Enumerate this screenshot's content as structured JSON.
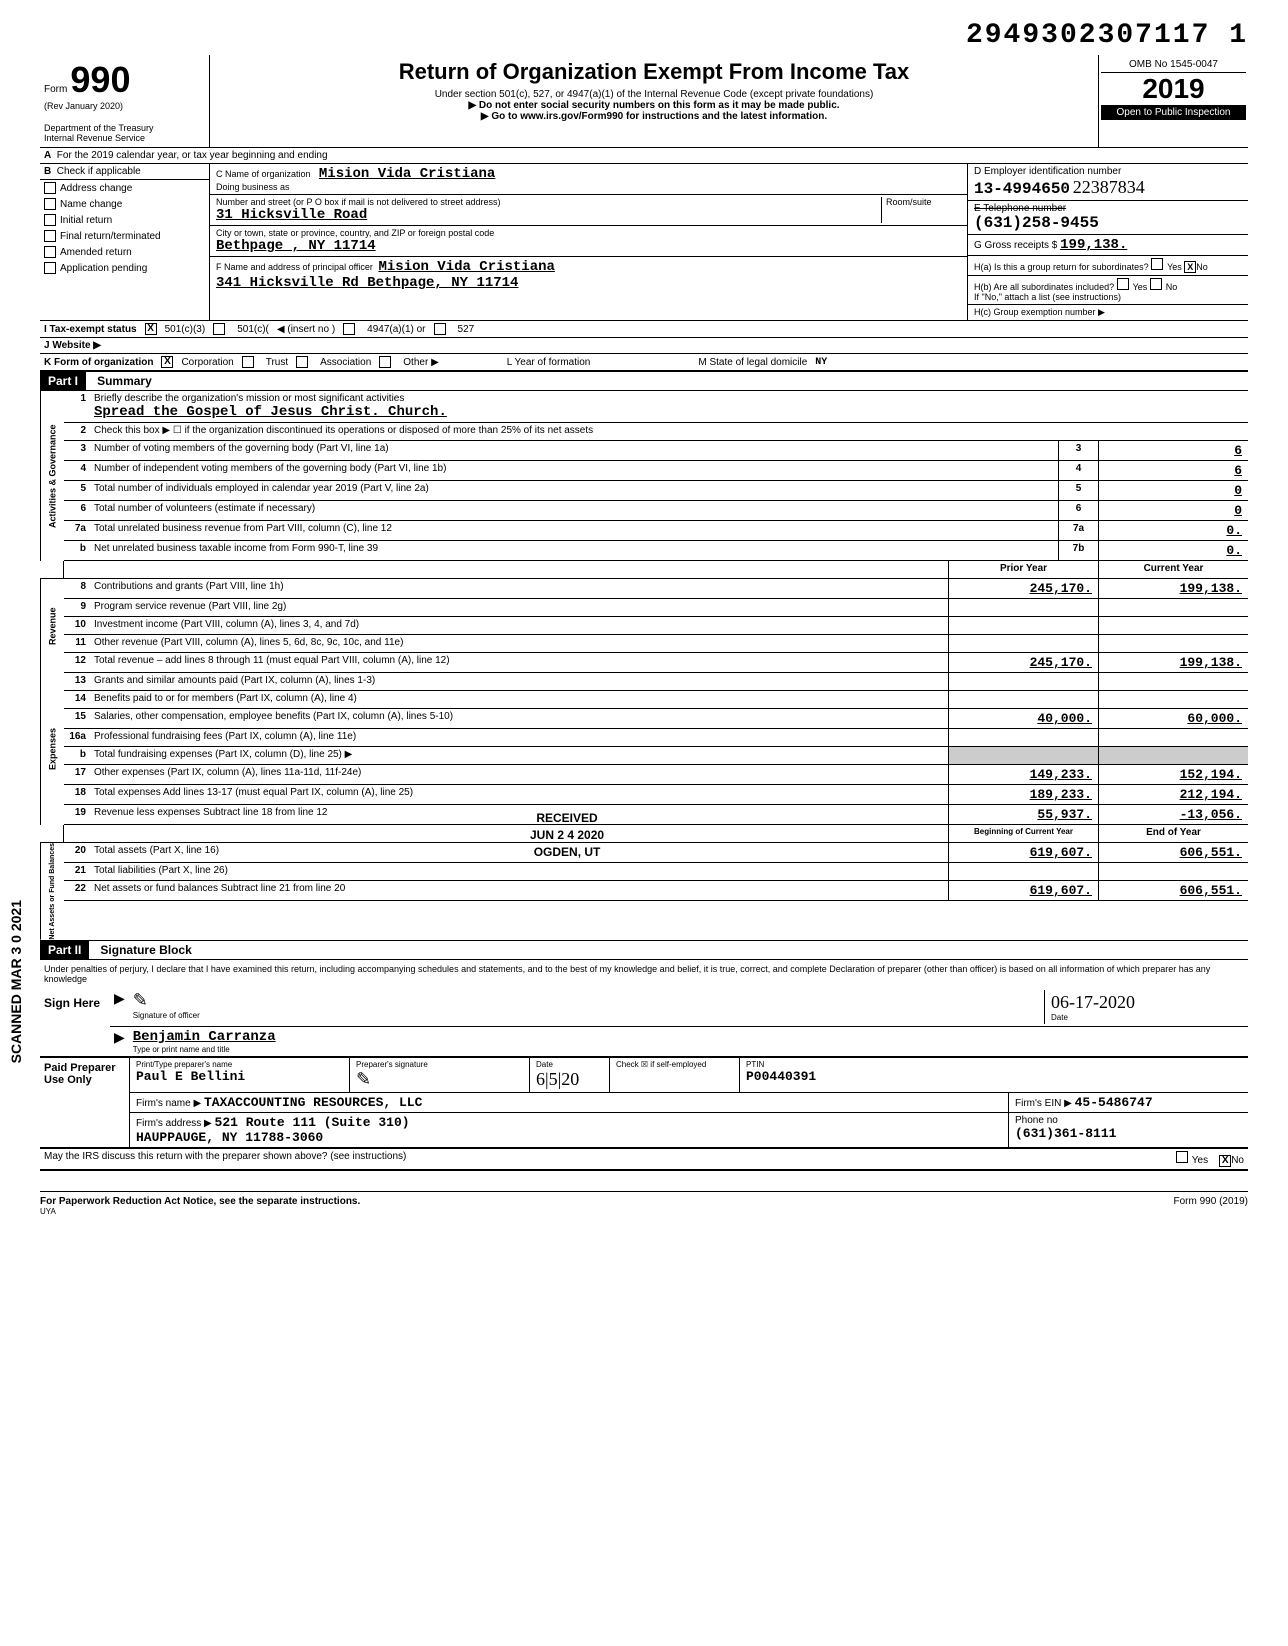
{
  "scan_number": "2949302307117 1",
  "form": {
    "prefix": "Form",
    "number": "990",
    "rev": "(Rev  January 2020)",
    "dept": "Department of the Treasury",
    "irs": "Internal Revenue Service"
  },
  "header": {
    "title": "Return of Organization Exempt From Income Tax",
    "sub1": "Under section 501(c), 527, or 4947(a)(1) of the Internal Revenue Code (except private foundations)",
    "sub2": "▶ Do not enter social security numbers on this form as it may be made public.",
    "sub3": "▶ Go to www.irs.gov/Form990 for instructions and the latest information.",
    "omb": "OMB No  1545-0047",
    "year": "2019",
    "open": "Open to Public Inspection"
  },
  "line_a": "For the 2019 calendar year, or tax year beginning                              and ending",
  "b_label": "Check if applicable",
  "b_checks": [
    "Address change",
    "Name change",
    "Initial return",
    "Final return/terminated",
    "Amended return",
    "Application pending"
  ],
  "c": {
    "name_label": "C  Name of organization",
    "name": "Mision Vida Cristiana",
    "dba_label": "Doing business as",
    "addr_label": "Number and street (or P O  box if mail is not delivered to street address)",
    "room_label": "Room/suite",
    "addr": "31 Hicksville Road",
    "city_label": "City or town, state or province, country, and ZIP or foreign postal code",
    "city": "Bethpage , NY 11714",
    "f_label": "F  Name and address of principal officer",
    "f_name": "Mision Vida Cristiana",
    "f_addr": "341 Hicksville Rd Bethpage, NY 11714"
  },
  "d": {
    "label": "D  Employer identification number",
    "ein": "13-4994650",
    "handwritten": "22387834"
  },
  "e": {
    "label": "E  Telephone number",
    "phone": "(631)258-9455"
  },
  "g": {
    "label": "G  Gross receipts $",
    "amount": "199,138."
  },
  "h": {
    "a_label": "H(a) Is this a group return for subordinates?",
    "a_no": "No",
    "b_label": "H(b) Are all subordinates included?",
    "b_note": "If \"No,\" attach a list  (see instructions)",
    "c_label": "H(c) Group exemption number ▶"
  },
  "i": {
    "label": "I    Tax-exempt status",
    "opt1": "501(c)(3)",
    "opt2": "501(c)(",
    "opt3": "◀ (insert no )",
    "opt4": "4947(a)(1) or",
    "opt5": "527"
  },
  "j": {
    "label": "J   Website  ▶"
  },
  "k": {
    "label": "K  Form of organization",
    "opts": [
      "Corporation",
      "Trust",
      "Association",
      "Other ▶"
    ],
    "l_label": "L   Year of formation",
    "m_label": "M  State of legal domicile",
    "m_val": "NY"
  },
  "part1": {
    "label": "Part I",
    "title": "Summary"
  },
  "summary": {
    "line1_label": "Briefly describe the organization's mission or most significant activities",
    "line1_val": "Spread the Gospel of Jesus Christ.  Church.",
    "line2": "Check this box ▶ ☐  if the organization discontinued its operations or disposed of more than 25% of its net assets",
    "lines_gov": [
      {
        "n": "3",
        "d": "Number of voting members of the governing body (Part VI, line 1a)",
        "box": "3",
        "v": "6"
      },
      {
        "n": "4",
        "d": "Number of independent voting members of the governing body (Part VI, line 1b)",
        "box": "4",
        "v": "6"
      },
      {
        "n": "5",
        "d": "Total number of individuals employed in calendar year 2019 (Part V, line 2a)",
        "box": "5",
        "v": "0"
      },
      {
        "n": "6",
        "d": "Total number of volunteers (estimate if necessary)",
        "box": "6",
        "v": "0"
      },
      {
        "n": "7a",
        "d": "Total unrelated business revenue from Part VIII, column (C), line 12",
        "box": "7a",
        "v": "0."
      },
      {
        "n": "b",
        "d": "Net unrelated business taxable income from Form 990-T, line 39",
        "box": "7b",
        "v": "0."
      }
    ],
    "col_prior": "Prior Year",
    "col_current": "Current Year",
    "revenue_lines": [
      {
        "n": "8",
        "d": "Contributions and grants (Part VIII, line 1h)",
        "p": "245,170.",
        "c": "199,138."
      },
      {
        "n": "9",
        "d": "Program service revenue (Part VIII, line 2g)",
        "p": "",
        "c": ""
      },
      {
        "n": "10",
        "d": "Investment income (Part VIII, column (A), lines 3, 4, and 7d)",
        "p": "",
        "c": ""
      },
      {
        "n": "11",
        "d": "Other revenue (Part VIII, column (A), lines 5, 6d, 8c, 9c, 10c, and 11e)",
        "p": "",
        "c": ""
      },
      {
        "n": "12",
        "d": "Total revenue – add lines 8 through 11 (must equal Part VIII, column (A), line 12)",
        "p": "245,170.",
        "c": "199,138."
      }
    ],
    "expense_lines": [
      {
        "n": "13",
        "d": "Grants and similar amounts paid (Part IX, column (A), lines 1-3)",
        "p": "",
        "c": ""
      },
      {
        "n": "14",
        "d": "Benefits paid to or for members (Part IX, column (A), line 4)",
        "p": "",
        "c": ""
      },
      {
        "n": "15",
        "d": "Salaries, other compensation, employee benefits (Part IX, column (A), lines 5-10)",
        "p": "40,000.",
        "c": "60,000."
      },
      {
        "n": "16a",
        "d": "Professional fundraising fees (Part IX, column (A), line 11e)",
        "p": "",
        "c": ""
      },
      {
        "n": "b",
        "d": "Total fundraising expenses (Part IX, column (D), line 25) ▶",
        "p": "",
        "c": "",
        "noamt": true
      },
      {
        "n": "17",
        "d": "Other expenses (Part IX, column (A), lines 11a-11d, 11f-24e)",
        "p": "149,233.",
        "c": "152,194."
      },
      {
        "n": "18",
        "d": "Total expenses  Add lines 13-17 (must equal Part IX, column (A), line 25)",
        "p": "189,233.",
        "c": "212,194."
      },
      {
        "n": "19",
        "d": "Revenue less expenses  Subtract line 18 from line 12",
        "p": "55,937.",
        "c": "-13,056."
      }
    ],
    "col_begin": "Beginning of Current Year",
    "col_end": "End of Year",
    "net_lines": [
      {
        "n": "20",
        "d": "Total assets (Part X, line 16)",
        "p": "619,607.",
        "c": "606,551."
      },
      {
        "n": "21",
        "d": "Total liabilities (Part X, line 26)",
        "p": "",
        "c": ""
      },
      {
        "n": "22",
        "d": "Net assets or fund balances  Subtract line 21 from line 20",
        "p": "619,607.",
        "c": "606,551."
      }
    ],
    "side_gov": "Activities & Governance",
    "side_rev": "Revenue",
    "side_exp": "Expenses",
    "side_net": "Net Assets or Fund Balances"
  },
  "part2": {
    "label": "Part II",
    "title": "Signature Block"
  },
  "sig": {
    "perjury": "Under penalties of perjury, I declare that I have examined this return, including accompanying schedules and statements, and to the best of my knowledge and belief, it is true, correct, and complete  Declaration of preparer (other than officer) is based on all information of which preparer has any knowledge",
    "sign_here": "Sign Here",
    "sig_label": "Signature of officer",
    "date_label": "Date",
    "date_val": "06-17-2020",
    "name_label": "Type or print name and title",
    "name_val": "Benjamin Carranza"
  },
  "prep": {
    "left": "Paid Preparer Use Only",
    "name_label": "Print/Type preparer's name",
    "name": "Paul E Bellini",
    "sig_label": "Preparer's signature",
    "date_label": "Date",
    "date": "6|5|20",
    "check_label": "Check ☒ if self-employed",
    "ptin_label": "PTIN",
    "ptin": "P00440391",
    "firm_label": "Firm's name ▶",
    "firm": "TAXACCOUNTING RESOURCES, LLC",
    "ein_label": "Firm's EIN ▶",
    "ein": "45-5486747",
    "addr_label": "Firm's address ▶",
    "addr1": "521 Route 111 (Suite 310)",
    "addr2": "HAUPPAUGE, NY 11788-3060",
    "phone_label": "Phone no",
    "phone": "(631)361-8111"
  },
  "discuss": {
    "q": "May the IRS discuss this return with the preparer shown above? (see instructions)",
    "yes": "Yes",
    "no": "No"
  },
  "footer": {
    "left": "For Paperwork Reduction Act Notice, see the separate instructions.",
    "uya": "UYA",
    "right": "Form 990 (2019)"
  },
  "side_scan": "SCANNED MAR 3 0 2021",
  "stamps": {
    "received": "RECEIVED",
    "date": "JUN 2 4 2020",
    "ogden": "OGDEN, UT"
  }
}
